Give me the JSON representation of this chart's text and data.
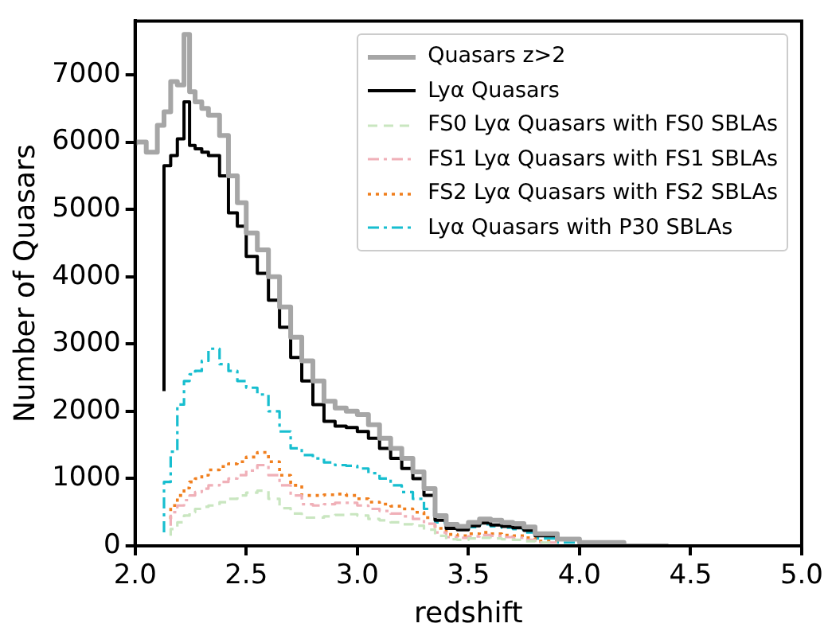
{
  "chart_data": {
    "type": "step",
    "xlabel": "redshift",
    "ylabel": "Number of Quasars",
    "x": [
      2.0,
      2.05,
      2.1,
      2.13,
      2.16,
      2.19,
      2.22,
      2.245,
      2.27,
      2.3,
      2.33,
      2.38,
      2.42,
      2.46,
      2.5,
      2.55,
      2.6,
      2.65,
      2.7,
      2.75,
      2.8,
      2.85,
      2.9,
      2.95,
      3.0,
      3.05,
      3.1,
      3.15,
      3.2,
      3.25,
      3.3,
      3.35,
      3.4,
      3.45,
      3.5,
      3.55,
      3.6,
      3.65,
      3.7,
      3.75,
      3.8,
      3.9,
      4.0,
      4.1,
      4.2,
      4.3,
      4.4
    ],
    "series": [
      {
        "name": "Quasars z>2",
        "color": "#a6a6a6",
        "line_style": "solid",
        "values": [
          5950,
          6000,
          5850,
          6250,
          6450,
          6900,
          6850,
          7600,
          6750,
          6600,
          6500,
          6400,
          6100,
          5500,
          5100,
          4650,
          4400,
          4000,
          3550,
          3100,
          2750,
          2450,
          2150,
          2050,
          2000,
          1950,
          1800,
          1600,
          1450,
          1300,
          1100,
          850,
          450,
          320,
          290,
          350,
          400,
          380,
          350,
          330,
          280,
          180,
          100,
          50,
          50,
          0,
          0
        ]
      },
      {
        "name": "Lyα Quasars",
        "color": "#000000",
        "line_style": "solid",
        "values": [
          null,
          null,
          null,
          2300,
          5650,
          5800,
          6050,
          6600,
          5950,
          5900,
          5850,
          5800,
          5500,
          4950,
          4750,
          4300,
          4050,
          3650,
          3250,
          2800,
          2450,
          2100,
          1850,
          1780,
          1760,
          1700,
          1600,
          1450,
          1300,
          1150,
          1000,
          750,
          380,
          260,
          240,
          300,
          340,
          310,
          290,
          270,
          230,
          150,
          100,
          50,
          null,
          null,
          null
        ]
      },
      {
        "name": "FS0 Lyα Quasars with FS0 SBLAs",
        "color": "#c9e6c0",
        "line_style": "dashed",
        "values": [
          null,
          null,
          null,
          null,
          150,
          250,
          350,
          450,
          500,
          550,
          580,
          600,
          650,
          700,
          750,
          790,
          820,
          700,
          560,
          480,
          420,
          420,
          440,
          460,
          470,
          450,
          400,
          380,
          350,
          320,
          300,
          240,
          150,
          100,
          90,
          110,
          120,
          110,
          100,
          90,
          70,
          50,
          null,
          null,
          null,
          null,
          null
        ]
      },
      {
        "name": "FS1 Lyα Quasars with FS1 SBLAs",
        "color": "#f0b0b8",
        "line_style": "dashdot",
        "values": [
          null,
          null,
          null,
          null,
          300,
          500,
          600,
          680,
          750,
          800,
          850,
          900,
          950,
          1000,
          1050,
          1120,
          1200,
          1050,
          900,
          750,
          620,
          600,
          620,
          640,
          640,
          600,
          550,
          520,
          480,
          440,
          400,
          330,
          200,
          130,
          120,
          140,
          160,
          150,
          130,
          120,
          90,
          50,
          null,
          null,
          null,
          null,
          null
        ]
      },
      {
        "name": "FS2 Lyα Quasars with FS2 SBLAs",
        "color": "#f07f1e",
        "line_style": "dotted",
        "values": [
          null,
          null,
          null,
          null,
          400,
          600,
          750,
          860,
          950,
          1000,
          1050,
          1130,
          1180,
          1220,
          1250,
          1320,
          1390,
          1250,
          1050,
          900,
          750,
          750,
          760,
          770,
          750,
          700,
          650,
          620,
          590,
          550,
          500,
          420,
          260,
          170,
          150,
          180,
          200,
          180,
          160,
          150,
          120,
          70,
          null,
          null,
          null,
          null,
          null
        ]
      },
      {
        "name": "Lyα Quasars with P30 SBLAs",
        "color": "#17becf",
        "line_style": "dashdot",
        "values": [
          null,
          null,
          null,
          200,
          950,
          1400,
          2100,
          2450,
          2550,
          2600,
          2750,
          2930,
          2700,
          2600,
          2450,
          2350,
          2250,
          2000,
          1700,
          1450,
          1350,
          1300,
          1240,
          1200,
          1190,
          1150,
          1080,
          1000,
          900,
          800,
          700,
          550,
          350,
          260,
          240,
          280,
          320,
          290,
          270,
          250,
          200,
          110,
          50,
          null,
          null,
          null,
          null
        ]
      }
    ],
    "xlim": [
      2.0,
      5.0
    ],
    "xticks": [
      {
        "value": 2.0,
        "label": "2.0"
      },
      2.5,
      {
        "value": 3.0,
        "label": "3.0"
      },
      3.5,
      {
        "value": 4.0,
        "label": "4.0"
      },
      4.5,
      {
        "value": 5.0,
        "label": "5.0"
      }
    ],
    "ylim": [
      0,
      7800
    ],
    "yticks": [
      0,
      1000,
      2000,
      3000,
      4000,
      5000,
      6000,
      7000
    ],
    "grid": false,
    "legend": "top right"
  }
}
